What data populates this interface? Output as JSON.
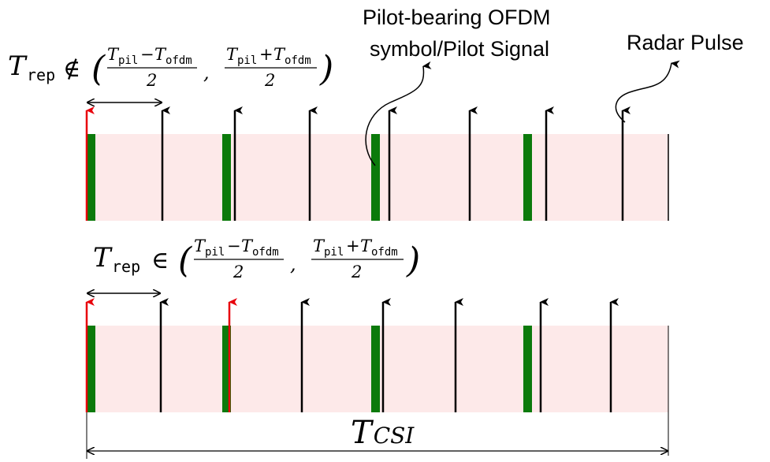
{
  "labels": {
    "pilot_line1": "Pilot-bearing OFDM",
    "pilot_line2": "symbol/Pilot Signal",
    "radar_pulse": "Radar Pulse",
    "tcsi_T": "T",
    "tcsi_sub": "CSI"
  },
  "top_formula": {
    "T": "T",
    "sub": "rep",
    "relation": "∉",
    "open": "(",
    "close": ")",
    "comma": ",",
    "num1_T1": "T",
    "num1_s1": "pil",
    "num1_op": "−",
    "num1_T2": "T",
    "num1_s2": "ofdm",
    "num2_T1": "T",
    "num2_s1": "pil",
    "num2_op": "+",
    "num2_T2": "T",
    "num2_s2": "ofdm",
    "den": "2"
  },
  "bottom_formula": {
    "T": "T",
    "sub": "rep",
    "relation": "∈",
    "open": "(",
    "close": ")",
    "comma": ",",
    "num1_T1": "T",
    "num1_s1": "pil",
    "num1_op": "−",
    "num1_T2": "T",
    "num1_s2": "ofdm",
    "num2_T1": "T",
    "num2_s1": "pil",
    "num2_op": "+",
    "num2_T2": "T",
    "num2_s2": "ofdm",
    "den": "2"
  },
  "colors": {
    "band": "#fde9e9",
    "pilot": "#0b7a0b",
    "pulse": "#000000",
    "red_pulse": "#e8000b",
    "line": "#000000"
  }
}
